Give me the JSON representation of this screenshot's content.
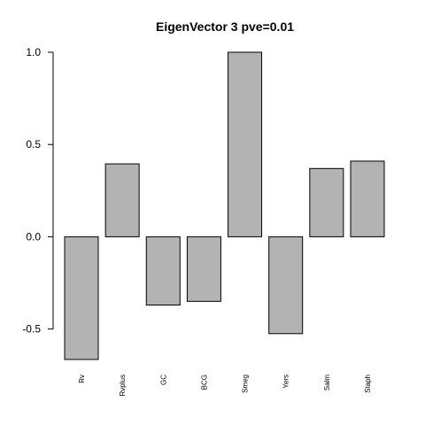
{
  "chart_data": {
    "type": "bar",
    "title": "EigenVector 3 pve=0.01",
    "xlabel": "",
    "ylabel": "",
    "categories": [
      "Rv",
      "Rvplus",
      "GC",
      "BCG",
      "Smeg",
      "Yers",
      "Salm",
      "Staph"
    ],
    "values": [
      -0.665,
      0.395,
      -0.37,
      -0.35,
      1.0,
      -0.525,
      0.37,
      0.41
    ],
    "ylim": [
      -0.665,
      1.0
    ],
    "yticks": [
      -0.5,
      0.0,
      0.5,
      1.0
    ],
    "ytick_labels": [
      "-0.5",
      "0.0",
      "0.5",
      "1.0"
    ],
    "bar_color": "#b3b3b3",
    "grid": false,
    "legend": "none"
  }
}
